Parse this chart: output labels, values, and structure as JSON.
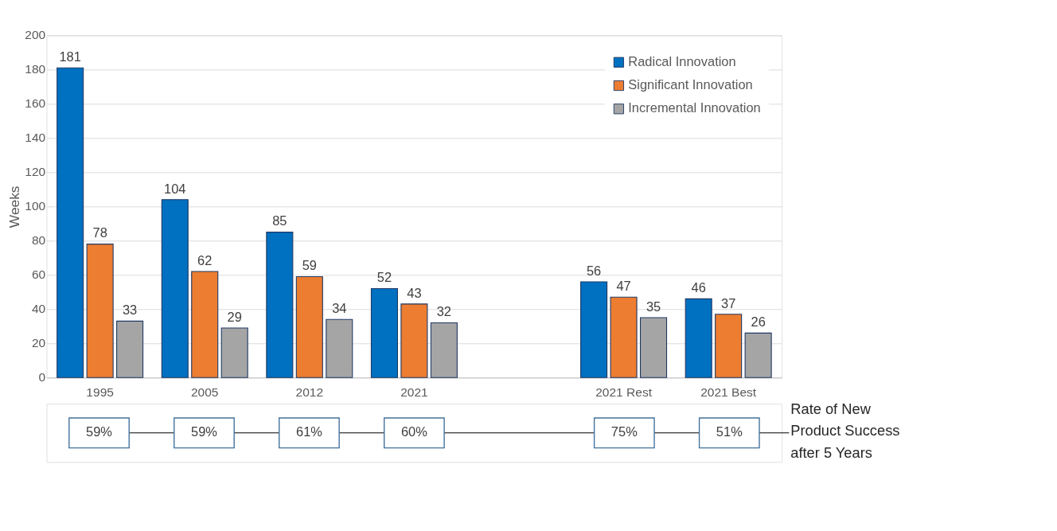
{
  "chart_data": {
    "type": "bar",
    "ylabel": "Weeks",
    "categories": [
      "1995",
      "2005",
      "2012",
      "2021",
      null,
      "2021 Rest",
      "2021 Best"
    ],
    "series": [
      {
        "name": "Radical Innovation",
        "color": "#0070c0",
        "values": [
          181,
          104,
          85,
          52,
          null,
          56,
          46
        ]
      },
      {
        "name": "Significant Innovation",
        "color": "#ed7d31",
        "values": [
          78,
          62,
          59,
          43,
          null,
          47,
          37
        ]
      },
      {
        "name": "Incremental Innovation",
        "color": "#a5a5a5",
        "values": [
          33,
          29,
          34,
          32,
          null,
          35,
          26
        ]
      }
    ],
    "ylim": [
      0,
      200
    ],
    "yticks": [
      0,
      20,
      40,
      60,
      80,
      100,
      120,
      140,
      160,
      180,
      200
    ],
    "grid": "y",
    "legend": "top right",
    "data_labels": true,
    "annotations": [
      "59%",
      "59%",
      "61%",
      "60%",
      "75%",
      "51%",
      "Rate of New Product Success after 5 Years"
    ]
  }
}
